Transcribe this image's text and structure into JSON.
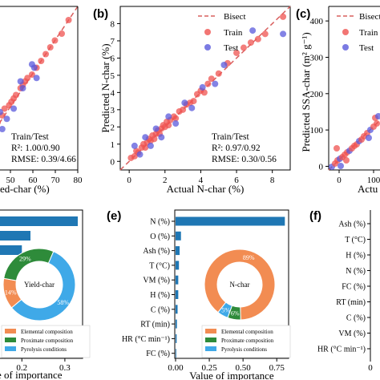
{
  "colors": {
    "bisect": "#d9605f",
    "train": "#ef5350",
    "test": "#5a5adc",
    "bar": "#1f77b4",
    "elemental": "#f28c52",
    "proximate": "#2e8b3a",
    "pyrolysis": "#3fa9e8"
  },
  "chart_data": [
    {
      "panel": "a",
      "type": "scatter",
      "xlabel_visible": "ed-char (%)",
      "x_ticks": [
        "50",
        "60",
        "70",
        "80"
      ],
      "annotation": {
        "line1": "Train/Test",
        "line2": "R²: 1.00/0.90",
        "line3": "RMSE: 0.39/4.66"
      },
      "xlim": [
        32,
        80
      ],
      "ylim": [
        32,
        80
      ],
      "train": [
        [
          36,
          37
        ],
        [
          38,
          39
        ],
        [
          40,
          41
        ],
        [
          42,
          43
        ],
        [
          44,
          45
        ],
        [
          45,
          46
        ],
        [
          47,
          48
        ],
        [
          48,
          50
        ],
        [
          50,
          51
        ],
        [
          51,
          52
        ],
        [
          52,
          53
        ],
        [
          53,
          54
        ],
        [
          55,
          56
        ],
        [
          56,
          57
        ],
        [
          57,
          58
        ],
        [
          58,
          59
        ],
        [
          60,
          60
        ],
        [
          62,
          62
        ],
        [
          64,
          64
        ],
        [
          66,
          66
        ],
        [
          68,
          68
        ],
        [
          70,
          70
        ],
        [
          73,
          72
        ],
        [
          76,
          76
        ]
      ],
      "test": [
        [
          35,
          38
        ],
        [
          37,
          35
        ],
        [
          42,
          44
        ],
        [
          46,
          49
        ],
        [
          49,
          47
        ],
        [
          52,
          50
        ],
        [
          55,
          58
        ],
        [
          60,
          63
        ],
        [
          62,
          59
        ],
        [
          34,
          47
        ],
        [
          56,
          56
        ],
        [
          61,
          62
        ],
        [
          47,
          44
        ]
      ]
    },
    {
      "panel": "b",
      "type": "scatter",
      "title": "",
      "xlabel": "Actual N-char (%)",
      "ylabel": "Predicted N-char (%)",
      "xlim": [
        -0.5,
        9
      ],
      "ylim": [
        -0.5,
        9
      ],
      "x_ticks": [
        0,
        2,
        4,
        6,
        8
      ],
      "y_ticks": [
        0,
        1,
        2,
        3,
        4,
        5,
        6,
        7,
        8
      ],
      "legend": [
        "Bisect",
        "Train",
        "Test"
      ],
      "annotation": {
        "line1": "Train/Test",
        "line2": "R²: 0.97/0.92",
        "line3": "RMSE: 0.30/0.56"
      },
      "train": [
        [
          0.1,
          0.2
        ],
        [
          0.3,
          0.3
        ],
        [
          0.4,
          0.6
        ],
        [
          0.5,
          0.5
        ],
        [
          0.7,
          0.8
        ],
        [
          0.8,
          1.0
        ],
        [
          0.9,
          0.8
        ],
        [
          1.0,
          1.1
        ],
        [
          1.1,
          1.3
        ],
        [
          1.2,
          1.2
        ],
        [
          1.3,
          1.5
        ],
        [
          1.4,
          1.3
        ],
        [
          1.5,
          1.6
        ],
        [
          1.6,
          1.8
        ],
        [
          1.7,
          1.6
        ],
        [
          1.8,
          1.9
        ],
        [
          1.9,
          2.1
        ],
        [
          2.0,
          2.0
        ],
        [
          2.1,
          2.3
        ],
        [
          2.2,
          2.1
        ],
        [
          2.3,
          2.4
        ],
        [
          2.5,
          2.6
        ],
        [
          2.6,
          2.5
        ],
        [
          2.8,
          2.9
        ],
        [
          3.0,
          3.0
        ],
        [
          3.2,
          3.3
        ],
        [
          3.4,
          3.4
        ],
        [
          3.6,
          3.5
        ],
        [
          3.8,
          3.9
        ],
        [
          4.0,
          4.1
        ],
        [
          4.2,
          4.0
        ],
        [
          4.4,
          4.5
        ],
        [
          4.6,
          4.8
        ],
        [
          5.0,
          5.1
        ],
        [
          5.5,
          5.7
        ],
        [
          6.0,
          6.3
        ],
        [
          6.4,
          6.6
        ],
        [
          6.8,
          6.9
        ],
        [
          7.2,
          7.1
        ],
        [
          7.6,
          7.4
        ],
        [
          8.6,
          8.4
        ]
      ],
      "test": [
        [
          0.3,
          0.9
        ],
        [
          0.6,
          0.4
        ],
        [
          0.9,
          1.4
        ],
        [
          1.2,
          0.9
        ],
        [
          1.5,
          1.9
        ],
        [
          1.8,
          1.4
        ],
        [
          2.2,
          2.6
        ],
        [
          2.6,
          2.2
        ],
        [
          3.1,
          3.4
        ],
        [
          3.5,
          3.1
        ],
        [
          4.1,
          4.3
        ],
        [
          4.8,
          4.5
        ],
        [
          5.3,
          5.6
        ],
        [
          6.9,
          7.6
        ],
        [
          8.6,
          7.4
        ]
      ]
    },
    {
      "panel": "c",
      "type": "scatter",
      "ylabel": "Predicted SSA-char (m² g⁻¹)",
      "xlabel_visible": "Actu",
      "ylim": [
        -10,
        440
      ],
      "y_ticks": [
        0,
        100,
        200,
        300,
        400
      ],
      "x_ticks": [
        "0",
        "100"
      ],
      "legend": [
        "Bisect",
        "Train",
        "Test"
      ]
    },
    {
      "panel": "d",
      "type": "bar",
      "orientation": "horizontal",
      "xlabel_visible": "e of importance",
      "x_ticks": [
        "0.2",
        "0.3"
      ],
      "values": [
        0.33,
        0.22,
        0.2
      ],
      "donut": {
        "center_label": "Yield-char",
        "values": [
          14,
          29,
          58
        ],
        "labels": [
          "14%",
          "29%",
          "58%"
        ]
      },
      "legend": [
        "Elemental composition",
        "Proximate composition",
        "Pyrolysis conditions"
      ]
    },
    {
      "panel": "e",
      "type": "bar",
      "orientation": "horizontal",
      "xlabel": "Value of importance",
      "x_ticks": [
        "0.00",
        "0.25",
        "0.50",
        "0.75"
      ],
      "categories": [
        "N (%)",
        "O (%)",
        "Ash (%)",
        "T (°C)",
        "VM (%)",
        "H (%)",
        "C (%)",
        "RT (min)",
        "HR (°C min⁻¹)",
        "FC (%)"
      ],
      "values": [
        0.81,
        0.04,
        0.03,
        0.025,
        0.02,
        0.02,
        0.015,
        0.01,
        0.008,
        0.005
      ],
      "donut": {
        "center_label": "N-char",
        "values": [
          89,
          6,
          5
        ],
        "labels": [
          "89%",
          "6%",
          "5%"
        ]
      },
      "legend": [
        "Elemental composition",
        "Proximate composition",
        "Pyrolysis conditions"
      ]
    },
    {
      "panel": "f",
      "type": "bar",
      "orientation": "horizontal",
      "categories": [
        "Ash (%)",
        "T (°C)",
        "H (%)",
        "N (%)",
        "FC (%)",
        "RT (min)",
        "C (%)",
        "VM (%)",
        "HR (°C min⁻¹)"
      ],
      "x_ticks": [
        "0"
      ]
    }
  ]
}
